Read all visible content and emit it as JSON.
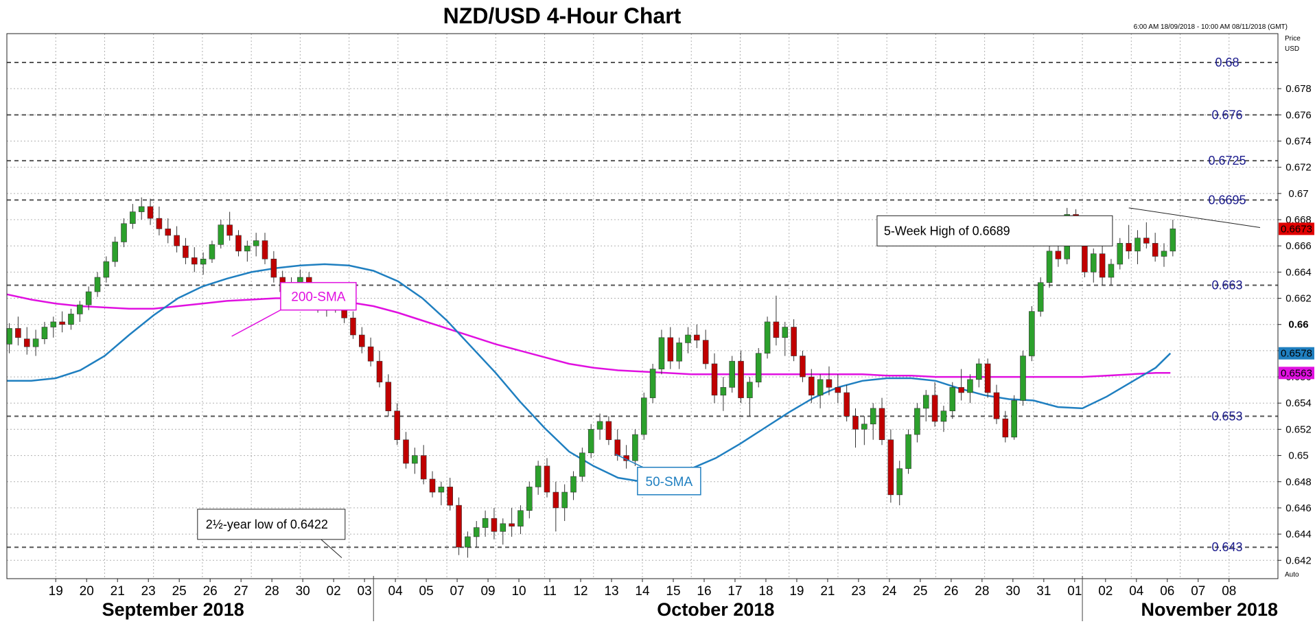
{
  "chart_data": {
    "type": "candlestick",
    "title": "NZD/USD 4-Hour Chart",
    "date_range_label": "6:00 AM 18/09/2018 - 10:00 AM 08/11/2018 (GMT)",
    "axis_header": [
      "Price",
      "USD"
    ],
    "auto_label": "Auto",
    "ylim": [
      0.6406,
      0.6822
    ],
    "yticks": [
      0.642,
      0.644,
      0.646,
      0.648,
      0.65,
      0.652,
      0.654,
      0.656,
      0.658,
      0.66,
      0.662,
      0.664,
      0.666,
      0.668,
      0.67,
      0.672,
      0.674,
      0.676,
      0.678
    ],
    "ytick_labels": [
      "0.642",
      "0.644",
      "0.646",
      "0.648",
      "0.65",
      "0.652",
      "0.654",
      "0.656",
      "0.658",
      "0.66",
      "0.662",
      "0.664",
      "0.666",
      "0.668",
      "0.67",
      "0.672",
      "0.674",
      "0.676",
      "0.678"
    ],
    "bold_ytick": "0.66",
    "x_days": [
      "19",
      "20",
      "21",
      "23",
      "25",
      "26",
      "27",
      "28",
      "30",
      "02",
      "03",
      "04",
      "05",
      "07",
      "09",
      "10",
      "11",
      "12",
      "13",
      "14",
      "15",
      "16",
      "17",
      "18",
      "19",
      "21",
      "23",
      "24",
      "25",
      "26",
      "28",
      "30",
      "31",
      "01",
      "02",
      "04",
      "06",
      "07",
      "08"
    ],
    "months": [
      "September 2018",
      "October 2018",
      "November 2018"
    ],
    "levels": [
      {
        "value": 0.68,
        "label": "0.68"
      },
      {
        "value": 0.676,
        "label": "0.676"
      },
      {
        "value": 0.6725,
        "label": "0.6725"
      },
      {
        "value": 0.6695,
        "label": "0.6695"
      },
      {
        "value": 0.663,
        "label": "0.663"
      },
      {
        "value": 0.653,
        "label": "0.653"
      },
      {
        "value": 0.643,
        "label": "0.643"
      }
    ],
    "current_price": {
      "value": 0.6673,
      "label": "0.6673",
      "color": "#e00000"
    },
    "sma50": {
      "name": "50-SMA",
      "color": "#1f7fc0",
      "last_label": "0.6578",
      "points": [
        [
          18,
          0.6557
        ],
        [
          18.5,
          0.6557
        ],
        [
          19,
          0.6559
        ],
        [
          19.5,
          0.6565
        ],
        [
          20,
          0.6576
        ],
        [
          20.5,
          0.6592
        ],
        [
          21,
          0.6607
        ],
        [
          21.5,
          0.662
        ],
        [
          22,
          0.6629
        ],
        [
          22.5,
          0.6635
        ],
        [
          23,
          0.664
        ],
        [
          23.5,
          0.6643
        ],
        [
          24,
          0.6645
        ],
        [
          24.5,
          0.6646
        ],
        [
          25,
          0.6645
        ],
        [
          25.5,
          0.6641
        ],
        [
          26,
          0.6633
        ],
        [
          26.5,
          0.662
        ],
        [
          27,
          0.6603
        ],
        [
          27.5,
          0.6583
        ],
        [
          28,
          0.6563
        ],
        [
          28.5,
          0.6541
        ],
        [
          29,
          0.6521
        ],
        [
          29.5,
          0.6503
        ],
        [
          30,
          0.6492
        ],
        [
          30.5,
          0.6483
        ],
        [
          31,
          0.648
        ],
        [
          31.5,
          0.6483
        ],
        [
          32,
          0.649
        ],
        [
          32.5,
          0.6498
        ],
        [
          33,
          0.6509
        ],
        [
          33.5,
          0.6521
        ],
        [
          34,
          0.6533
        ],
        [
          34.5,
          0.6544
        ],
        [
          35,
          0.6552
        ],
        [
          35.5,
          0.6557
        ],
        [
          36,
          0.6559
        ],
        [
          36.5,
          0.6559
        ],
        [
          37,
          0.6557
        ],
        [
          37.5,
          0.6551
        ],
        [
          38,
          0.6546
        ],
        [
          38.5,
          0.6543
        ],
        [
          39,
          0.6542
        ],
        [
          39.5,
          0.6537
        ],
        [
          40,
          0.6536
        ],
        [
          40.5,
          0.6545
        ],
        [
          41,
          0.6556
        ],
        [
          41.5,
          0.6567
        ],
        [
          41.8,
          0.6578
        ]
      ]
    },
    "sma200": {
      "name": "200-SMA",
      "color": "#e010e0",
      "last_label": "0.6563",
      "points": [
        [
          18,
          0.6623
        ],
        [
          18.5,
          0.6619
        ],
        [
          19,
          0.6616
        ],
        [
          19.5,
          0.6614
        ],
        [
          20,
          0.6613
        ],
        [
          20.5,
          0.6612
        ],
        [
          21,
          0.6612
        ],
        [
          21.5,
          0.6614
        ],
        [
          22,
          0.6616
        ],
        [
          22.5,
          0.6618
        ],
        [
          23,
          0.6619
        ],
        [
          23.5,
          0.662
        ],
        [
          24,
          0.662
        ],
        [
          24.5,
          0.6619
        ],
        [
          25,
          0.6617
        ],
        [
          25.5,
          0.6614
        ],
        [
          26,
          0.6609
        ],
        [
          26.5,
          0.6603
        ],
        [
          27,
          0.6597
        ],
        [
          27.5,
          0.6591
        ],
        [
          28,
          0.6585
        ],
        [
          28.5,
          0.658
        ],
        [
          29,
          0.6575
        ],
        [
          29.5,
          0.657
        ],
        [
          30,
          0.6567
        ],
        [
          30.5,
          0.6565
        ],
        [
          31,
          0.6564
        ],
        [
          31.5,
          0.6563
        ],
        [
          32,
          0.6562
        ],
        [
          32.5,
          0.6562
        ],
        [
          33,
          0.6562
        ],
        [
          33.5,
          0.6562
        ],
        [
          34,
          0.6562
        ],
        [
          34.5,
          0.6562
        ],
        [
          35,
          0.6562
        ],
        [
          35.5,
          0.6562
        ],
        [
          36,
          0.6561
        ],
        [
          36.5,
          0.6561
        ],
        [
          37,
          0.656
        ],
        [
          37.5,
          0.656
        ],
        [
          38,
          0.656
        ],
        [
          38.5,
          0.656
        ],
        [
          39,
          0.656
        ],
        [
          39.5,
          0.656
        ],
        [
          40,
          0.656
        ],
        [
          40.5,
          0.6561
        ],
        [
          41,
          0.6562
        ],
        [
          41.5,
          0.6563
        ],
        [
          41.8,
          0.6563
        ]
      ]
    },
    "candles_ohlc": [
      [
        0.6585,
        0.6601,
        0.6578,
        0.6597
      ],
      [
        0.6597,
        0.6606,
        0.6584,
        0.659
      ],
      [
        0.6589,
        0.6598,
        0.6577,
        0.6583
      ],
      [
        0.6583,
        0.6596,
        0.6576,
        0.6589
      ],
      [
        0.6589,
        0.6602,
        0.6585,
        0.6598
      ],
      [
        0.6598,
        0.6606,
        0.659,
        0.6602
      ],
      [
        0.6602,
        0.661,
        0.6594,
        0.66
      ],
      [
        0.66,
        0.6612,
        0.6596,
        0.6608
      ],
      [
        0.6608,
        0.6618,
        0.6602,
        0.6615
      ],
      [
        0.6615,
        0.6629,
        0.6611,
        0.6625
      ],
      [
        0.6625,
        0.664,
        0.6621,
        0.6636
      ],
      [
        0.6636,
        0.6652,
        0.6632,
        0.6648
      ],
      [
        0.6648,
        0.6667,
        0.6644,
        0.6663
      ],
      [
        0.6663,
        0.6681,
        0.6659,
        0.6677
      ],
      [
        0.6677,
        0.6692,
        0.6673,
        0.6686
      ],
      [
        0.6686,
        0.6697,
        0.668,
        0.669
      ],
      [
        0.669,
        0.6696,
        0.6676,
        0.6681
      ],
      [
        0.6681,
        0.669,
        0.6668,
        0.6673
      ],
      [
        0.6673,
        0.6681,
        0.6662,
        0.6668
      ],
      [
        0.6668,
        0.6675,
        0.6655,
        0.666
      ],
      [
        0.666,
        0.6666,
        0.6646,
        0.6651
      ],
      [
        0.6651,
        0.6659,
        0.664,
        0.6646
      ],
      [
        0.6646,
        0.6655,
        0.6638,
        0.665
      ],
      [
        0.665,
        0.6664,
        0.6647,
        0.6661
      ],
      [
        0.6661,
        0.668,
        0.6658,
        0.6676
      ],
      [
        0.6676,
        0.6686,
        0.6664,
        0.6668
      ],
      [
        0.6668,
        0.6672,
        0.6652,
        0.6656
      ],
      [
        0.6656,
        0.6664,
        0.6648,
        0.666
      ],
      [
        0.666,
        0.667,
        0.6652,
        0.6664
      ],
      [
        0.6664,
        0.667,
        0.6646,
        0.665
      ],
      [
        0.665,
        0.6656,
        0.6632,
        0.6636
      ],
      [
        0.6636,
        0.6641,
        0.6621,
        0.6625
      ],
      [
        0.6625,
        0.6636,
        0.6615,
        0.6631
      ],
      [
        0.6631,
        0.6642,
        0.6625,
        0.6636
      ],
      [
        0.6636,
        0.664,
        0.6617,
        0.662
      ],
      [
        0.662,
        0.6627,
        0.6609,
        0.6613
      ],
      [
        0.6613,
        0.6622,
        0.6606,
        0.6618
      ],
      [
        0.6618,
        0.6626,
        0.6609,
        0.6612
      ],
      [
        0.6612,
        0.662,
        0.6601,
        0.6605
      ],
      [
        0.6605,
        0.661,
        0.6589,
        0.6592
      ],
      [
        0.6592,
        0.6598,
        0.6578,
        0.6583
      ],
      [
        0.6583,
        0.659,
        0.6568,
        0.6572
      ],
      [
        0.6572,
        0.658,
        0.6552,
        0.6556
      ],
      [
        0.6556,
        0.6562,
        0.653,
        0.6534
      ],
      [
        0.6534,
        0.654,
        0.6508,
        0.6512
      ],
      [
        0.6512,
        0.6518,
        0.649,
        0.6494
      ],
      [
        0.6494,
        0.6506,
        0.6486,
        0.65
      ],
      [
        0.65,
        0.6508,
        0.6478,
        0.6482
      ],
      [
        0.6482,
        0.6488,
        0.6468,
        0.6472
      ],
      [
        0.6472,
        0.648,
        0.6462,
        0.6476
      ],
      [
        0.6476,
        0.6483,
        0.6458,
        0.6462
      ],
      [
        0.6462,
        0.6468,
        0.6424,
        0.643
      ],
      [
        0.643,
        0.6442,
        0.6422,
        0.6438
      ],
      [
        0.6438,
        0.645,
        0.643,
        0.6445
      ],
      [
        0.6445,
        0.6458,
        0.6438,
        0.6452
      ],
      [
        0.6452,
        0.646,
        0.6436,
        0.6442
      ],
      [
        0.6442,
        0.6452,
        0.6432,
        0.6448
      ],
      [
        0.6448,
        0.646,
        0.6438,
        0.6446
      ],
      [
        0.6446,
        0.6462,
        0.644,
        0.6458
      ],
      [
        0.6458,
        0.648,
        0.6452,
        0.6476
      ],
      [
        0.6476,
        0.6496,
        0.647,
        0.6492
      ],
      [
        0.6492,
        0.6498,
        0.6468,
        0.6472
      ],
      [
        0.6472,
        0.648,
        0.6442,
        0.646
      ],
      [
        0.646,
        0.6478,
        0.645,
        0.6472
      ],
      [
        0.6472,
        0.6488,
        0.6466,
        0.6484
      ],
      [
        0.6484,
        0.6506,
        0.648,
        0.6502
      ],
      [
        0.6502,
        0.6524,
        0.6498,
        0.652
      ],
      [
        0.652,
        0.6532,
        0.6512,
        0.6526
      ],
      [
        0.6526,
        0.653,
        0.6508,
        0.6512
      ],
      [
        0.6512,
        0.652,
        0.6496,
        0.65
      ],
      [
        0.65,
        0.6508,
        0.649,
        0.6496
      ],
      [
        0.6496,
        0.652,
        0.6492,
        0.6516
      ],
      [
        0.6516,
        0.6548,
        0.6512,
        0.6544
      ],
      [
        0.6544,
        0.657,
        0.654,
        0.6566
      ],
      [
        0.6566,
        0.6596,
        0.6562,
        0.659
      ],
      [
        0.659,
        0.6598,
        0.6566,
        0.6572
      ],
      [
        0.6572,
        0.659,
        0.6566,
        0.6586
      ],
      [
        0.6586,
        0.6598,
        0.6578,
        0.6592
      ],
      [
        0.6592,
        0.66,
        0.6582,
        0.6588
      ],
      [
        0.6588,
        0.6596,
        0.6566,
        0.657
      ],
      [
        0.657,
        0.6578,
        0.654,
        0.6546
      ],
      [
        0.6546,
        0.656,
        0.6534,
        0.6552
      ],
      [
        0.6552,
        0.6576,
        0.6548,
        0.6572
      ],
      [
        0.6572,
        0.658,
        0.654,
        0.6544
      ],
      [
        0.6544,
        0.656,
        0.653,
        0.6556
      ],
      [
        0.6556,
        0.6582,
        0.6552,
        0.6578
      ],
      [
        0.6578,
        0.6606,
        0.6574,
        0.6602
      ],
      [
        0.6602,
        0.6622,
        0.6584,
        0.659
      ],
      [
        0.659,
        0.6602,
        0.6576,
        0.6598
      ],
      [
        0.6598,
        0.6604,
        0.6572,
        0.6576
      ],
      [
        0.6576,
        0.658,
        0.6556,
        0.656
      ],
      [
        0.656,
        0.6566,
        0.654,
        0.6546
      ],
      [
        0.6546,
        0.6562,
        0.6536,
        0.6558
      ],
      [
        0.6558,
        0.6568,
        0.6546,
        0.6552
      ],
      [
        0.6552,
        0.6562,
        0.654,
        0.6548
      ],
      [
        0.6548,
        0.6554,
        0.6526,
        0.653
      ],
      [
        0.653,
        0.6536,
        0.6506,
        0.652
      ],
      [
        0.652,
        0.653,
        0.6508,
        0.6524
      ],
      [
        0.6524,
        0.654,
        0.6512,
        0.6536
      ],
      [
        0.6536,
        0.6544,
        0.6508,
        0.6512
      ],
      [
        0.6512,
        0.652,
        0.6464,
        0.647
      ],
      [
        0.647,
        0.6496,
        0.6462,
        0.649
      ],
      [
        0.649,
        0.652,
        0.6486,
        0.6516
      ],
      [
        0.6516,
        0.654,
        0.651,
        0.6536
      ],
      [
        0.6536,
        0.655,
        0.6526,
        0.6546
      ],
      [
        0.6546,
        0.6556,
        0.6522,
        0.6526
      ],
      [
        0.6526,
        0.6538,
        0.6518,
        0.6534
      ],
      [
        0.6534,
        0.6556,
        0.6528,
        0.6552
      ],
      [
        0.6552,
        0.6566,
        0.6542,
        0.6548
      ],
      [
        0.6548,
        0.6562,
        0.654,
        0.6558
      ],
      [
        0.6558,
        0.6574,
        0.6552,
        0.657
      ],
      [
        0.657,
        0.6574,
        0.6544,
        0.6548
      ],
      [
        0.6548,
        0.6554,
        0.6524,
        0.6528
      ],
      [
        0.6528,
        0.6534,
        0.651,
        0.6514
      ],
      [
        0.6514,
        0.6546,
        0.6512,
        0.6542
      ],
      [
        0.6542,
        0.658,
        0.6538,
        0.6576
      ],
      [
        0.6576,
        0.6614,
        0.6572,
        0.661
      ],
      [
        0.661,
        0.6636,
        0.6606,
        0.6632
      ],
      [
        0.6632,
        0.666,
        0.6628,
        0.6656
      ],
      [
        0.6656,
        0.667,
        0.6644,
        0.665
      ],
      [
        0.665,
        0.6689,
        0.6646,
        0.6684
      ],
      [
        0.6684,
        0.6688,
        0.666,
        0.6664
      ],
      [
        0.6664,
        0.667,
        0.6636,
        0.664
      ],
      [
        0.664,
        0.6658,
        0.6632,
        0.6654
      ],
      [
        0.6654,
        0.6662,
        0.663,
        0.6636
      ],
      [
        0.6636,
        0.665,
        0.663,
        0.6646
      ],
      [
        0.6646,
        0.6666,
        0.6642,
        0.6662
      ],
      [
        0.6662,
        0.6676,
        0.665,
        0.6656
      ],
      [
        0.6656,
        0.6672,
        0.6646,
        0.6666
      ],
      [
        0.6666,
        0.6678,
        0.6658,
        0.6662
      ],
      [
        0.6662,
        0.667,
        0.6648,
        0.6652
      ],
      [
        0.6652,
        0.6662,
        0.6644,
        0.6656
      ],
      [
        0.6656,
        0.668,
        0.6652,
        0.6673
      ]
    ],
    "annotations": [
      {
        "text": "5-Week High of 0.6689",
        "price": 0.6689
      },
      {
        "text": "2½-year low of 0.6422",
        "price": 0.6422
      }
    ],
    "grid": true
  }
}
